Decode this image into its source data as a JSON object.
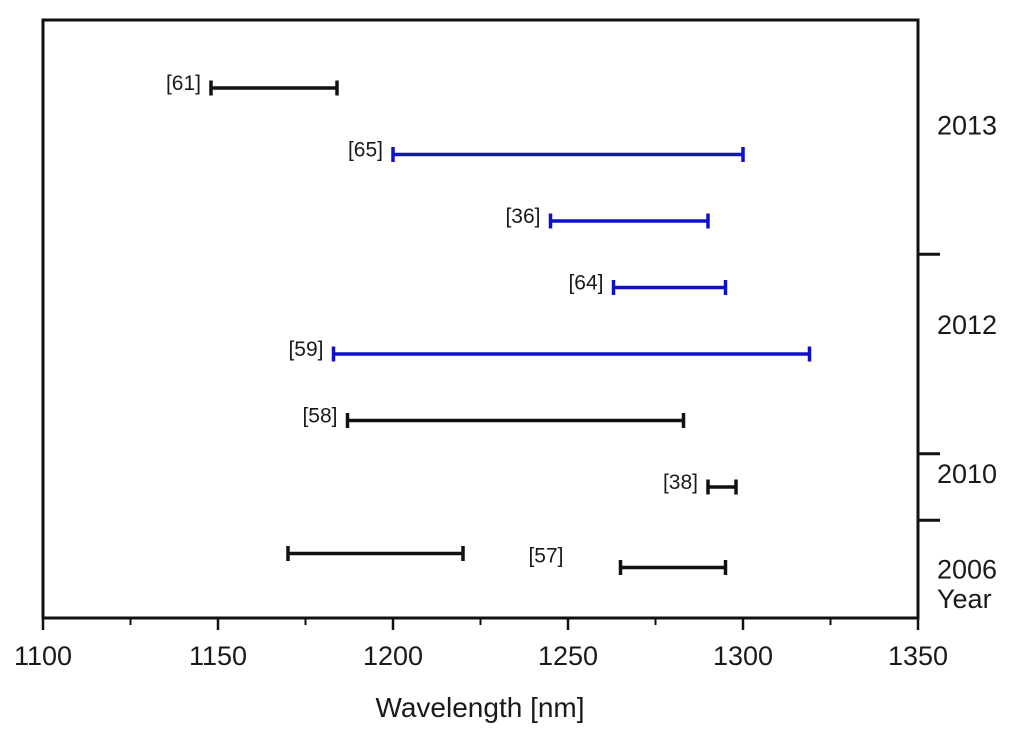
{
  "chart_data": {
    "type": "range",
    "title": "",
    "xlabel": "Wavelength [nm]",
    "ylabel": "Year",
    "xlim": [
      1100,
      1350
    ],
    "x_ticks": [
      1100,
      1150,
      1200,
      1250,
      1300,
      1350
    ],
    "grid": false,
    "colors": {
      "black": "#111111",
      "blue": "#1010c8"
    },
    "rows": [
      {
        "label": "[61]",
        "ranges": [
          [
            1148,
            1184
          ]
        ],
        "color": "black"
      },
      {
        "label": "[65]",
        "ranges": [
          [
            1200,
            1300
          ]
        ],
        "color": "blue"
      },
      {
        "label": "[36]",
        "ranges": [
          [
            1245,
            1290
          ]
        ],
        "color": "blue"
      },
      {
        "label": "[64]",
        "ranges": [
          [
            1263,
            1295
          ]
        ],
        "color": "blue"
      },
      {
        "label": "[59]",
        "ranges": [
          [
            1183,
            1319
          ]
        ],
        "color": "blue"
      },
      {
        "label": "[58]",
        "ranges": [
          [
            1187,
            1283
          ]
        ],
        "color": "black"
      },
      {
        "label": "[38]",
        "ranges": [
          [
            1290,
            1298
          ]
        ],
        "color": "black"
      },
      {
        "label": "[57]",
        "ranges": [
          [
            1170,
            1220
          ],
          [
            1265,
            1295
          ]
        ],
        "color": "black"
      }
    ],
    "year_groups": [
      {
        "year": "2013",
        "rows": [
          0,
          1,
          2
        ]
      },
      {
        "year": "2012",
        "rows": [
          3,
          4,
          5
        ]
      },
      {
        "year": "2010",
        "rows": [
          6
        ]
      },
      {
        "year": "2006",
        "rows": [
          7
        ]
      }
    ]
  }
}
